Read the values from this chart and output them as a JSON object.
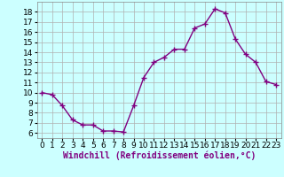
{
  "x": [
    0,
    1,
    2,
    3,
    4,
    5,
    6,
    7,
    8,
    9,
    10,
    11,
    12,
    13,
    14,
    15,
    16,
    17,
    18,
    19,
    20,
    21,
    22,
    23
  ],
  "y": [
    10,
    9.8,
    8.7,
    7.3,
    6.8,
    6.8,
    6.2,
    6.2,
    6.1,
    8.7,
    11.5,
    13.0,
    13.5,
    14.3,
    14.3,
    16.4,
    16.8,
    18.3,
    17.9,
    15.3,
    13.8,
    13.0,
    11.1,
    10.8
  ],
  "line_color": "#800080",
  "marker": "+",
  "marker_size": 4,
  "bg_color": "#ccffff",
  "grid_color": "#b0b0b0",
  "xlabel": "Windchill (Refroidissement éolien,°C)",
  "ylim": [
    5.5,
    19.0
  ],
  "xlim": [
    -0.5,
    23.5
  ],
  "yticks": [
    6,
    7,
    8,
    9,
    10,
    11,
    12,
    13,
    14,
    15,
    16,
    17,
    18
  ],
  "xticks": [
    0,
    1,
    2,
    3,
    4,
    5,
    6,
    7,
    8,
    9,
    10,
    11,
    12,
    13,
    14,
    15,
    16,
    17,
    18,
    19,
    20,
    21,
    22,
    23
  ],
  "xlabel_fontsize": 7,
  "tick_fontsize": 6.5,
  "line_width": 1.0,
  "marker_color": "#800080"
}
